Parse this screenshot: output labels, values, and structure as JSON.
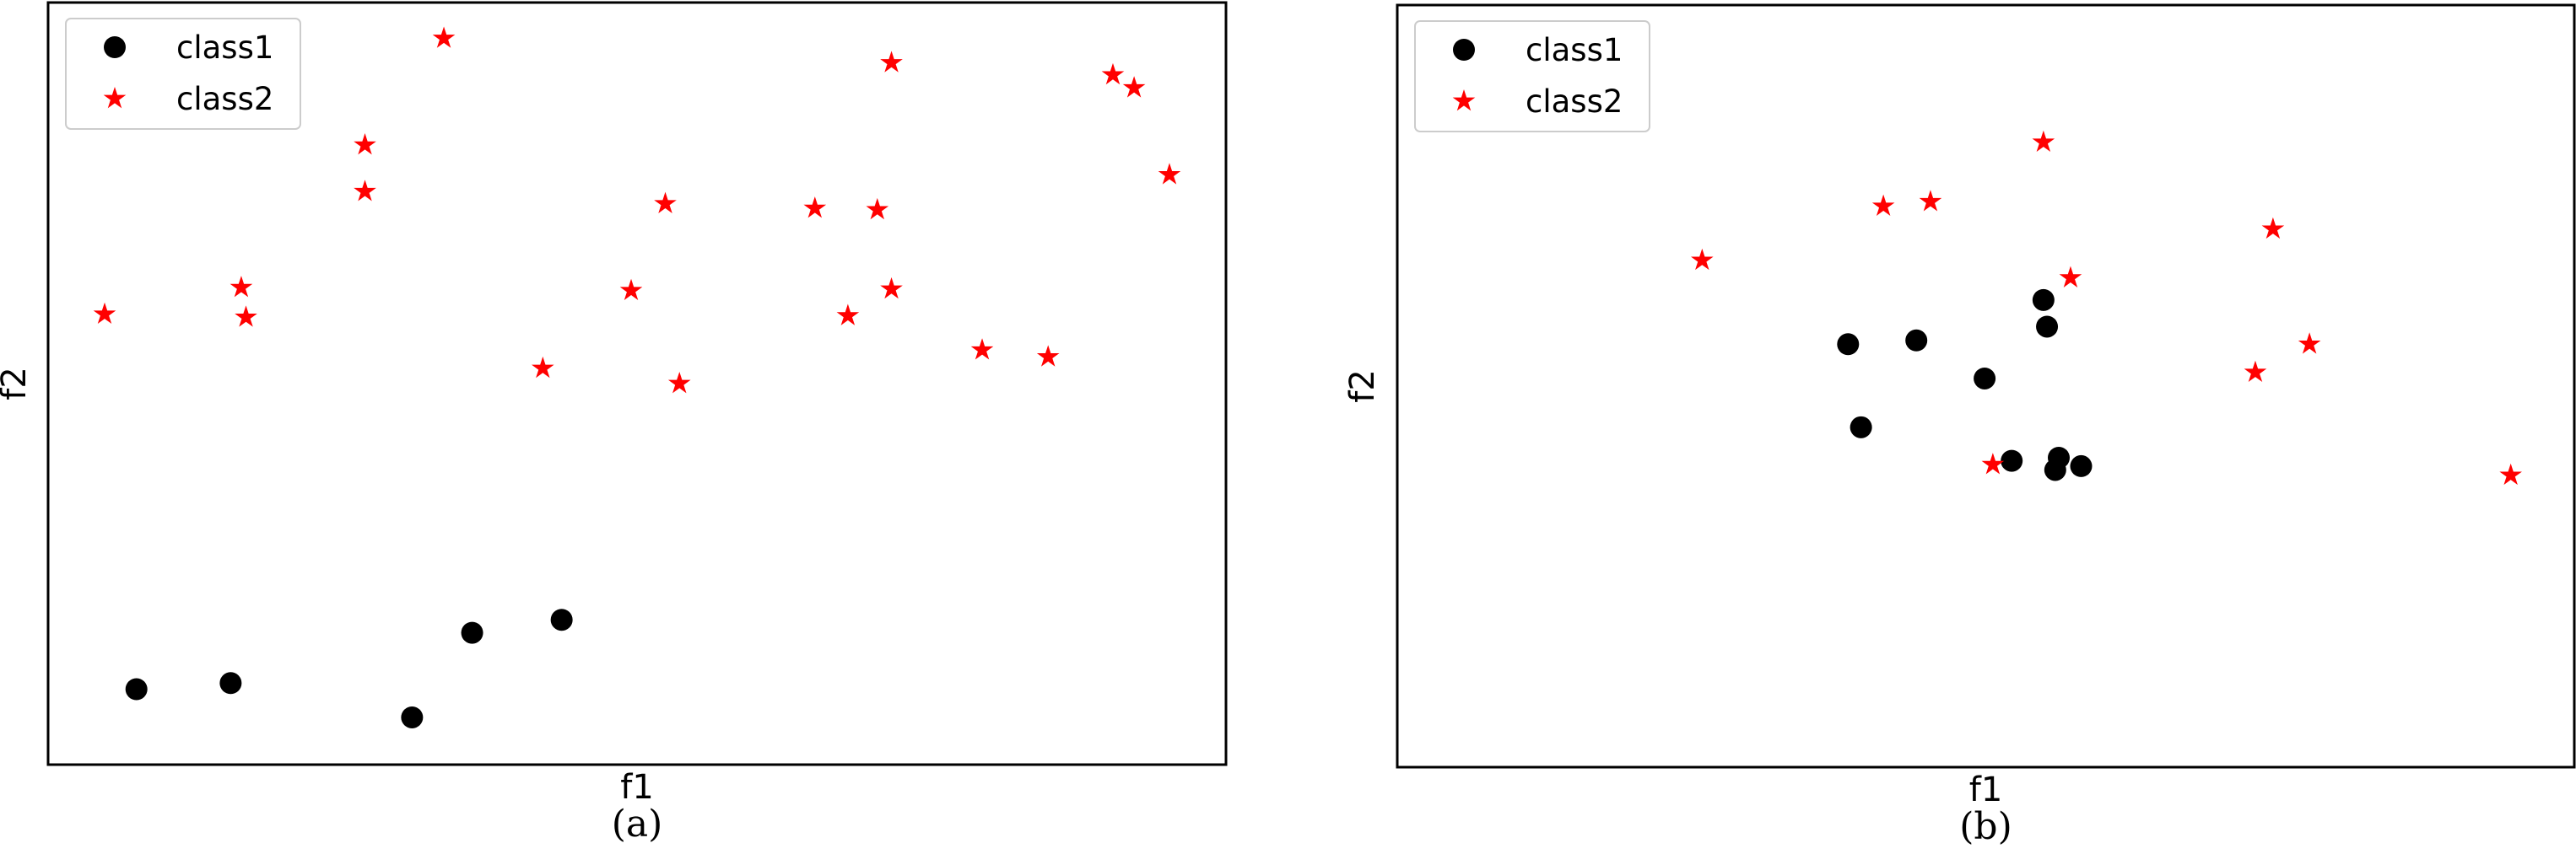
{
  "chart_data": [
    {
      "type": "scatter",
      "panel_caption": "(a)",
      "xlabel": "f1",
      "ylabel": "f2",
      "xlim": [
        0,
        100
      ],
      "ylim": [
        0,
        100
      ],
      "ticks_visible": false,
      "grid": false,
      "legend_position": "top-left",
      "series": [
        {
          "name": "class1",
          "marker": "circle",
          "color": "#000000",
          "points": [
            {
              "x": 7.5,
              "y": 9.9
            },
            {
              "x": 15.5,
              "y": 10.7
            },
            {
              "x": 30.9,
              "y": 6.2
            },
            {
              "x": 36.0,
              "y": 17.3
            },
            {
              "x": 43.6,
              "y": 19.0
            }
          ]
        },
        {
          "name": "class2",
          "marker": "star",
          "color": "#ff0000",
          "points": [
            {
              "x": 4.8,
              "y": 59.1
            },
            {
              "x": 16.4,
              "y": 62.6
            },
            {
              "x": 16.8,
              "y": 58.7
            },
            {
              "x": 26.9,
              "y": 81.3
            },
            {
              "x": 26.9,
              "y": 75.2
            },
            {
              "x": 33.6,
              "y": 95.3
            },
            {
              "x": 42.0,
              "y": 52.0
            },
            {
              "x": 49.5,
              "y": 62.2
            },
            {
              "x": 52.4,
              "y": 73.6
            },
            {
              "x": 53.6,
              "y": 50.0
            },
            {
              "x": 65.1,
              "y": 73.0
            },
            {
              "x": 67.9,
              "y": 58.9
            },
            {
              "x": 70.4,
              "y": 72.8
            },
            {
              "x": 71.6,
              "y": 62.4
            },
            {
              "x": 71.6,
              "y": 92.1
            },
            {
              "x": 79.3,
              "y": 54.4
            },
            {
              "x": 84.9,
              "y": 53.5
            },
            {
              "x": 90.4,
              "y": 90.5
            },
            {
              "x": 92.2,
              "y": 88.8
            },
            {
              "x": 95.2,
              "y": 77.4
            }
          ]
        }
      ]
    },
    {
      "type": "scatter",
      "panel_caption": "(b)",
      "xlabel": "f1",
      "ylabel": "f2",
      "xlim": [
        0,
        100
      ],
      "ylim": [
        0,
        100
      ],
      "ticks_visible": false,
      "grid": false,
      "legend_position": "top-left",
      "series": [
        {
          "name": "class1",
          "marker": "circle",
          "color": "#000000",
          "points": [
            {
              "x": 38.3,
              "y": 55.5
            },
            {
              "x": 39.4,
              "y": 44.6
            },
            {
              "x": 44.1,
              "y": 56.0
            },
            {
              "x": 49.9,
              "y": 51.0
            },
            {
              "x": 52.2,
              "y": 40.2
            },
            {
              "x": 54.9,
              "y": 61.3
            },
            {
              "x": 55.2,
              "y": 57.8
            },
            {
              "x": 55.9,
              "y": 39.0
            },
            {
              "x": 56.2,
              "y": 40.6
            },
            {
              "x": 58.1,
              "y": 39.5
            }
          ]
        },
        {
          "name": "class2",
          "marker": "star",
          "color": "#ff0000",
          "points": [
            {
              "x": 25.9,
              "y": 66.5
            },
            {
              "x": 41.3,
              "y": 73.6
            },
            {
              "x": 45.3,
              "y": 74.2
            },
            {
              "x": 50.6,
              "y": 39.7
            },
            {
              "x": 54.9,
              "y": 82.0
            },
            {
              "x": 57.2,
              "y": 64.2
            },
            {
              "x": 72.9,
              "y": 51.8
            },
            {
              "x": 74.4,
              "y": 70.6
            },
            {
              "x": 77.5,
              "y": 55.5
            },
            {
              "x": 94.6,
              "y": 38.3
            }
          ]
        }
      ]
    }
  ]
}
